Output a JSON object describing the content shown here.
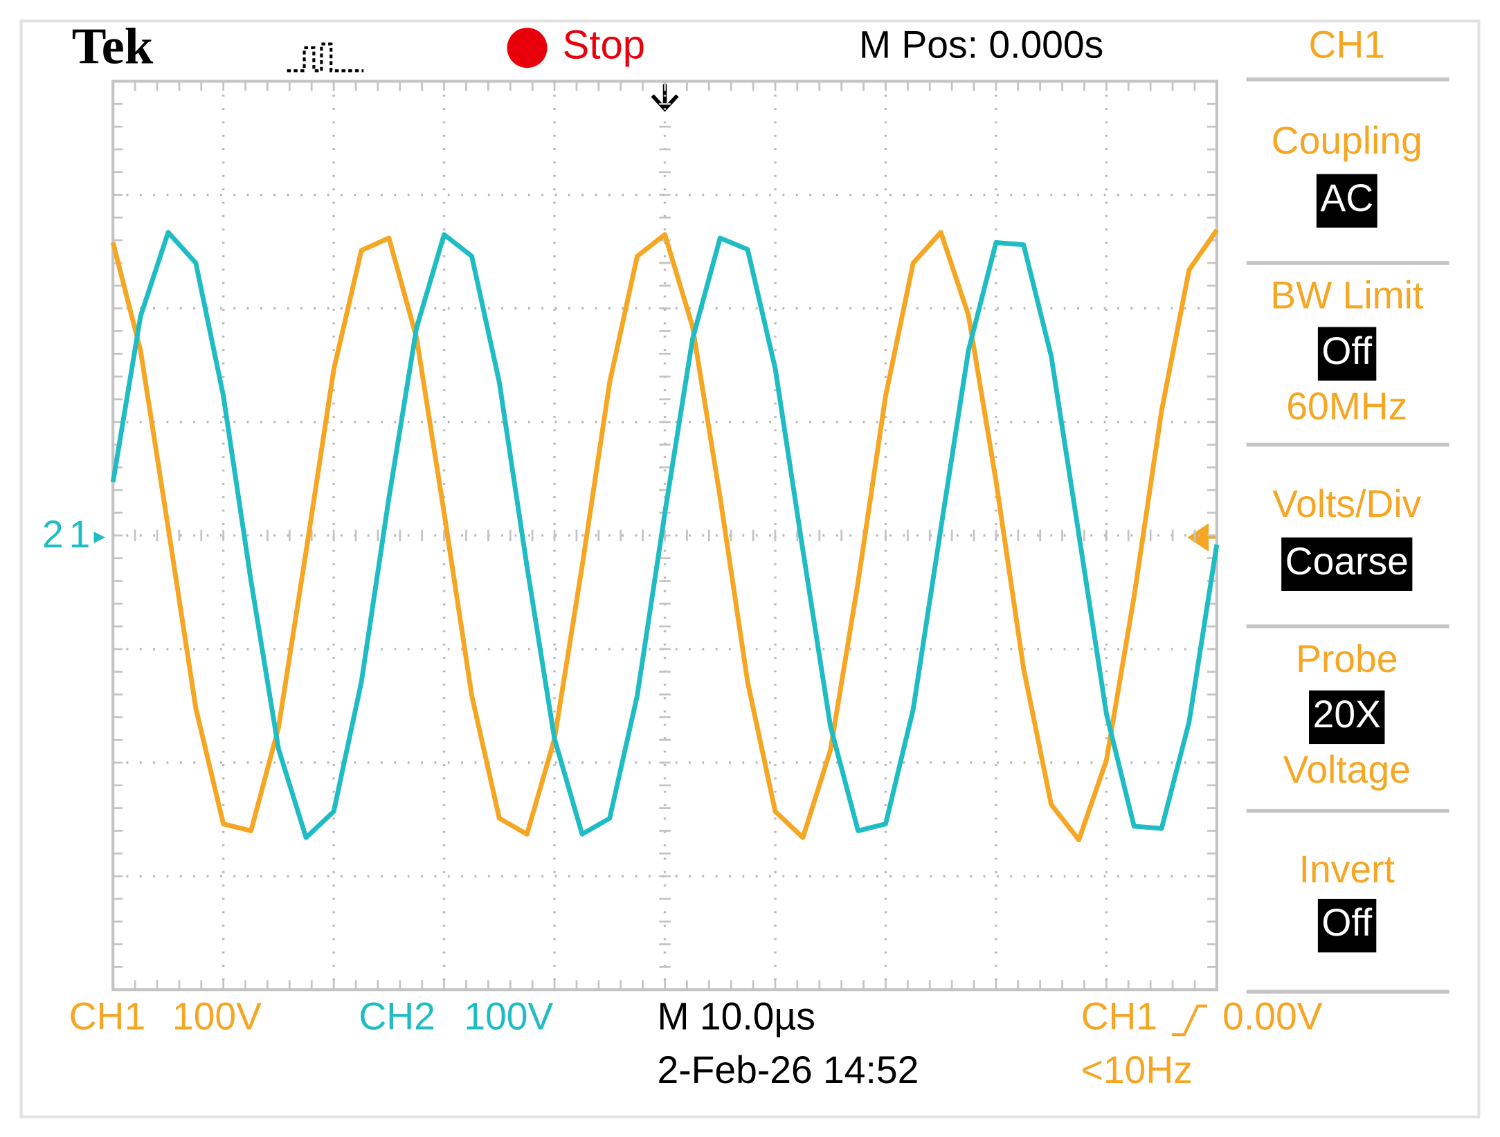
{
  "header": {
    "brand": "Tek",
    "status": "Stop",
    "position": "M Pos: 0.000s"
  },
  "menu": {
    "title": "CH1",
    "items": [
      {
        "label": "Coupling",
        "value": "AC"
      },
      {
        "label": "BW Limit",
        "value": "Off",
        "extra": "60MHz"
      },
      {
        "label": "Volts/Div",
        "value": "Coarse"
      },
      {
        "label": "Probe",
        "value": "20X",
        "extra": "Voltage"
      },
      {
        "label": "Invert",
        "value": "Off"
      }
    ]
  },
  "markers": {
    "ch2": "2",
    "ch1": "1"
  },
  "footer": {
    "ch1": "CH1",
    "ch1_scale": "100V",
    "ch2": "CH2",
    "ch2_scale": "100V",
    "timebase": "M 10.0µs",
    "date": "2-Feb-26 14:52",
    "trigger_source": "CH1",
    "trigger_level": "0.00V",
    "frequency": "<10Hz"
  },
  "chart_data": {
    "type": "line",
    "xlim": [
      0,
      10
    ],
    "ylim": [
      -4,
      4
    ],
    "grid": true,
    "x": [
      0,
      0.25,
      0.5,
      0.75,
      1,
      1.25,
      1.5,
      1.75,
      2,
      2.25,
      2.5,
      2.75,
      3,
      3.25,
      3.5,
      3.75,
      4,
      4.25,
      4.5,
      4.75,
      5,
      5.25,
      5.5,
      5.75,
      6,
      6.25,
      6.5,
      6.75,
      7,
      7.25,
      7.5,
      7.75,
      8,
      8.25,
      8.5,
      8.75,
      9,
      9.25,
      9.5,
      9.75,
      10
    ],
    "series": [
      {
        "color": "#f5a623",
        "values": [
          2.58,
          1.63,
          0.07,
          -1.52,
          -2.54,
          -2.6,
          -1.69,
          -0.14,
          1.46,
          2.51,
          2.62,
          1.74,
          0.2,
          -1.41,
          -2.49,
          -2.63,
          -1.79,
          -0.27,
          1.35,
          2.46,
          2.65,
          1.84,
          0.34,
          -1.29,
          -2.43,
          -2.66,
          -1.89,
          -0.41,
          1.23,
          2.4,
          2.67,
          1.94,
          0.48,
          -1.17,
          -2.37,
          -2.68,
          -1.98,
          -0.54,
          1.1,
          2.34,
          2.69
        ]
      },
      {
        "color": "#1fbcc4",
        "values": [
          0.47,
          1.93,
          2.67,
          2.4,
          1.23,
          -0.4,
          -1.88,
          -2.66,
          -2.43,
          -1.29,
          0.33,
          1.83,
          2.65,
          2.46,
          1.35,
          -0.27,
          -1.79,
          -2.63,
          -2.49,
          -1.41,
          0.2,
          1.73,
          2.62,
          2.52,
          1.47,
          -0.13,
          -1.68,
          -2.6,
          -2.54,
          -1.53,
          0.06,
          1.63,
          2.58,
          2.56,
          1.58,
          0.01,
          -1.57,
          -2.56,
          -2.58,
          -1.64,
          -0.08
        ]
      }
    ]
  }
}
